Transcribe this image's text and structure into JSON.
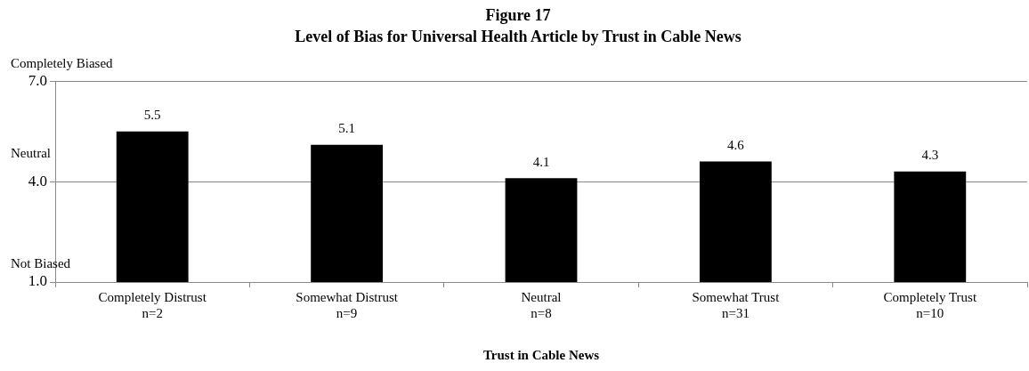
{
  "chart_data": {
    "type": "bar",
    "title": "Figure 17",
    "subtitle": "Level of Bias for Universal Health Article by Trust in Cable News",
    "xlabel": "Trust in Cable News",
    "categories": [
      "Completely Distrust\nn=2",
      "Somewhat Distrust\nn=9",
      "Neutral\nn=8",
      "Somewhat Trust\nn=31",
      "Completely Trust\nn=10"
    ],
    "values": [
      5.5,
      5.1,
      4.1,
      4.6,
      4.3
    ],
    "color": "#000000",
    "ylim": [
      1,
      7
    ],
    "yticks": [
      {
        "value": 1,
        "label": "1.0"
      },
      {
        "value": 4,
        "label": "4.0"
      },
      {
        "value": 7,
        "label": "7.0"
      }
    ],
    "annotations": [
      "Completely Biased",
      "Neutral",
      "Not Biased"
    ],
    "grid": "y",
    "legend": false,
    "data_labels": true
  }
}
